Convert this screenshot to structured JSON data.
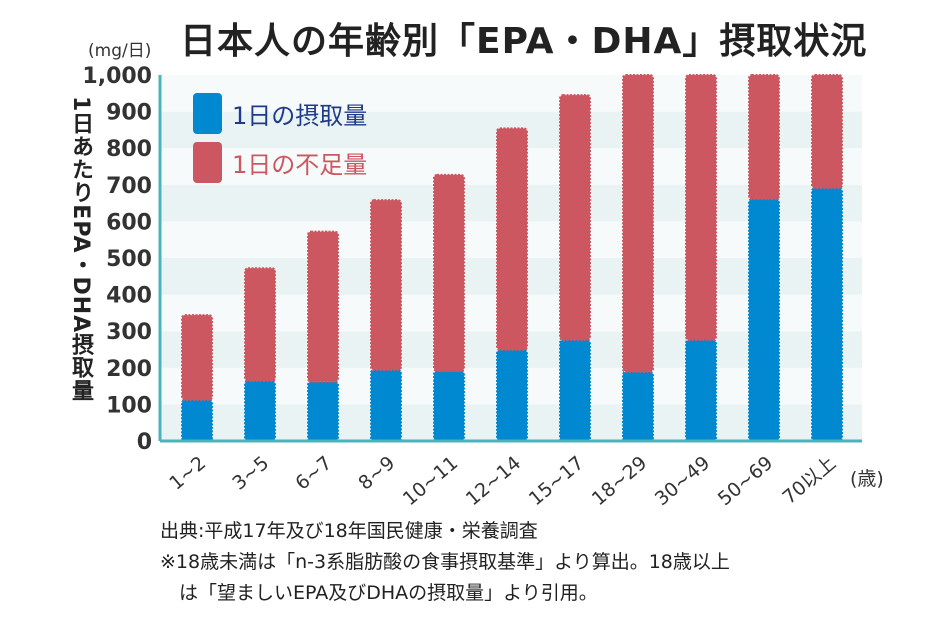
{
  "title": "日本人の年齢別「EPA・DHA」摂取状況",
  "unit_label": "(mg/日)",
  "chart_data": {
    "type": "bar",
    "stacked": true,
    "title": "日本人の年齢別「EPA・DHA」摂取状況",
    "ylabel": "1日あたりEPA・DHA摂取量",
    "yunit": "(mg/日)",
    "xunit": "(歳)",
    "ylim": [
      0,
      1000
    ],
    "yticks": [
      0,
      100,
      200,
      300,
      400,
      500,
      600,
      700,
      800,
      900,
      1000
    ],
    "ytick_labels": [
      "0",
      "100",
      "200",
      "300",
      "400",
      "500",
      "600",
      "700",
      "800",
      "900",
      "1,000"
    ],
    "grid": "alternating horizontal bands",
    "legend_position": "top-left",
    "categories": [
      "1~2",
      "3~5",
      "6~7",
      "8~9",
      "10~11",
      "12~14",
      "15~17",
      "18~29",
      "30~49",
      "50~69",
      "70以上"
    ],
    "series": [
      {
        "name": "1日の摂取量",
        "color": "#0089d1",
        "values": [
          112,
          164,
          162,
          194,
          191,
          249,
          276,
          189,
          276,
          661,
          691
        ]
      },
      {
        "name": "1日の不足量",
        "color": "#cc5760",
        "values": [
          232,
          308,
          410,
          464,
          536,
          605,
          669,
          811,
          724,
          339,
          309
        ]
      }
    ]
  },
  "notes": [
    "出典:平成17年及び18年国民健康・栄養調査",
    "※18歳未満は「n-3系脂肪酸の食事摂取基準」より算出。18歳以上",
    "　は「望ましいEPA及びDHAの摂取量」より引用。"
  ],
  "colors": {
    "axis": "#4ab3bb",
    "band": "#e9f3f3",
    "band_alt": "#f6fafa",
    "legend_intake_text": "#1f3a8a",
    "legend_deficit_text": "#cc5760"
  }
}
